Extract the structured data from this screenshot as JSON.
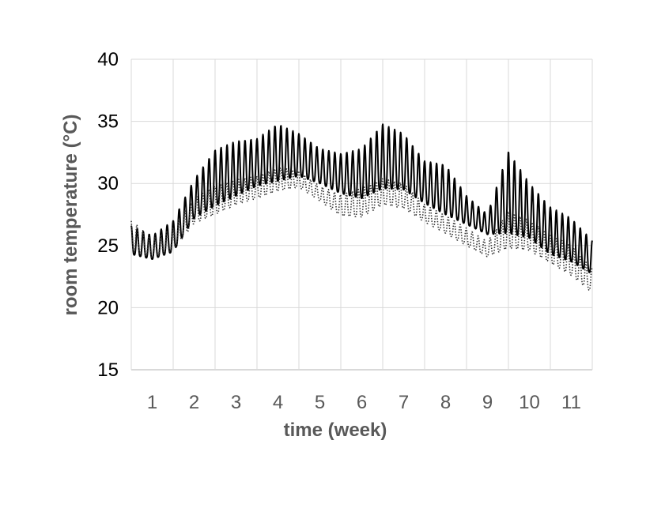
{
  "chart_data": {
    "type": "line",
    "title": "",
    "xlabel": "time (week)",
    "ylabel": "room temperature (°C)",
    "xlim": [
      0,
      11
    ],
    "ylim": [
      15,
      40
    ],
    "y_ticks": [
      15,
      20,
      25,
      30,
      35,
      40
    ],
    "x_ticks": [
      1,
      2,
      3,
      4,
      5,
      6,
      7,
      8,
      9,
      10,
      11
    ],
    "grid": true,
    "legend": "none",
    "series": [
      {
        "style": "solid",
        "color": "#000000",
        "x": [
          0.0,
          0.5,
          1.0,
          1.5,
          2.0,
          2.5,
          3.0,
          3.5,
          4.0,
          4.5,
          5.0,
          5.5,
          6.0,
          6.5,
          7.0,
          7.5,
          8.0,
          8.5,
          9.0,
          9.5,
          10.0,
          10.5,
          11.0
        ],
        "min": [
          24.3,
          23.9,
          24.5,
          27.2,
          28.2,
          29.0,
          29.8,
          30.2,
          30.6,
          30.0,
          29.2,
          28.8,
          29.6,
          29.5,
          28.4,
          27.5,
          26.7,
          25.9,
          26.0,
          25.6,
          24.3,
          23.7,
          22.7
        ],
        "max": [
          26.6,
          25.8,
          27.0,
          30.3,
          32.7,
          33.4,
          33.6,
          34.8,
          34.0,
          32.8,
          32.4,
          32.8,
          34.8,
          34.0,
          31.8,
          31.5,
          29.0,
          27.5,
          32.6,
          30.0,
          28.1,
          27.2,
          25.4
        ],
        "note": ""
      },
      {
        "style": "dotted",
        "color": "#333333",
        "x": [
          0.0,
          0.5,
          1.0,
          1.5,
          2.0,
          2.5,
          3.0,
          3.5,
          4.0,
          4.5,
          5.0,
          5.5,
          6.0,
          6.5,
          7.0,
          7.5,
          8.0,
          8.5,
          9.0,
          9.5,
          10.0,
          10.5,
          11.0
        ],
        "min": [
          24.6,
          24.0,
          24.6,
          26.8,
          27.5,
          28.3,
          28.8,
          29.4,
          29.7,
          28.6,
          27.4,
          27.3,
          28.3,
          28.0,
          26.9,
          26.0,
          25.0,
          24.1,
          24.8,
          24.6,
          23.6,
          22.6,
          21.2
        ],
        "max": [
          27.1,
          25.5,
          26.5,
          28.8,
          29.8,
          30.3,
          30.6,
          31.3,
          31.0,
          29.8,
          29.1,
          29.6,
          30.4,
          30.0,
          28.3,
          27.4,
          26.4,
          25.3,
          27.8,
          27.0,
          25.9,
          25.0,
          23.1
        ],
        "note": ""
      }
    ]
  }
}
